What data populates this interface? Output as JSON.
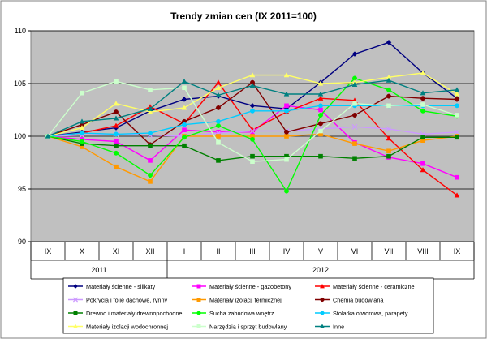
{
  "chart_data": {
    "type": "line",
    "title": "Trendy zmian cen (IX 2011=100)",
    "x": [
      "IX",
      "X",
      "XI",
      "XII",
      "I",
      "II",
      "III",
      "IV",
      "V",
      "VI",
      "VII",
      "VIII",
      "IX"
    ],
    "year_groups": [
      {
        "label": "2011",
        "from": 0,
        "to": 3
      },
      {
        "label": "2012",
        "from": 4,
        "to": 12
      }
    ],
    "ylim": [
      90,
      110
    ],
    "yticks": [
      90,
      95,
      100,
      105,
      110
    ],
    "grid": true,
    "legend_position": "bottom",
    "plot_background": "#c0c0c0",
    "series": [
      {
        "name": "Materiały ścienne - silikaty",
        "color": "#000080",
        "marker": "diamond",
        "values": [
          100,
          100.4,
          100.8,
          102.4,
          103.5,
          103.8,
          102.9,
          102.6,
          105.1,
          107.8,
          108.9,
          106.0,
          103.6
        ]
      },
      {
        "name": "Materiały ścienne - gazobetony",
        "color": "#ff00ff",
        "marker": "square",
        "values": [
          100,
          99.7,
          99.5,
          97.7,
          100.6,
          100.4,
          100.4,
          102.9,
          102.5,
          99.4,
          98.0,
          97.4,
          96.1
        ]
      },
      {
        "name": "Materiały ścienne - ceramiczne",
        "color": "#ff0000",
        "marker": "triangle",
        "values": [
          100,
          100.3,
          101.0,
          102.8,
          101.2,
          105.1,
          100.6,
          102.3,
          103.6,
          103.4,
          99.8,
          96.8,
          94.4
        ]
      },
      {
        "name": "Pokrycia i folie dachowe, rynny",
        "color": "#cc99ff",
        "marker": "x",
        "values": [
          100,
          100.1,
          100.2,
          100.1,
          100.0,
          100.3,
          100.5,
          100.5,
          100.7,
          100.9,
          100.7,
          100.2,
          100.4
        ]
      },
      {
        "name": "Materiały izolacji termicznej",
        "color": "#ff9900",
        "marker": "square",
        "values": [
          100,
          99.0,
          97.1,
          95.7,
          100.0,
          100.0,
          100.0,
          100.0,
          100.2,
          99.3,
          98.6,
          99.6,
          100.0
        ]
      },
      {
        "name": "Chemia budowlana",
        "color": "#800000",
        "marker": "circle",
        "values": [
          100,
          101.1,
          102.3,
          99.2,
          101.4,
          102.7,
          105.1,
          100.4,
          101.2,
          102.0,
          103.8,
          103.6,
          103.5
        ]
      },
      {
        "name": "Drewno i materiały drewnopochodne",
        "color": "#008000",
        "marker": "square",
        "values": [
          100,
          99.3,
          99.1,
          99.1,
          99.1,
          97.7,
          98.1,
          98.1,
          98.1,
          97.9,
          98.1,
          99.9,
          99.9
        ]
      },
      {
        "name": "Sucha zabudowa wnętrz",
        "color": "#00ff00",
        "marker": "circle",
        "values": [
          100,
          99.5,
          98.4,
          96.3,
          99.9,
          101.0,
          99.7,
          94.8,
          102.0,
          105.5,
          104.4,
          102.4,
          101.9
        ]
      },
      {
        "name": "Stolarka otworowa, parapety",
        "color": "#00ccff",
        "marker": "circle",
        "values": [
          100,
          100.3,
          100.2,
          100.3,
          101.1,
          101.4,
          102.4,
          102.4,
          102.9,
          102.9,
          102.9,
          102.9,
          102.9
        ]
      },
      {
        "name": "Materiały izolacji wodochronnej",
        "color": "#ffff66",
        "marker": "triangle",
        "values": [
          100,
          100.8,
          103.1,
          102.3,
          102.7,
          104.6,
          105.8,
          105.8,
          105.0,
          105.1,
          105.6,
          106.0,
          104.0
        ]
      },
      {
        "name": "Narzędzia i sprzęt budowlany",
        "color": "#ccffcc",
        "marker": "square",
        "values": [
          100,
          104.1,
          105.2,
          104.4,
          104.6,
          99.4,
          97.6,
          97.8,
          100.5,
          103.1,
          102.9,
          103.0,
          102.0
        ]
      },
      {
        "name": "Inne",
        "color": "#008080",
        "marker": "triangle",
        "values": [
          100,
          101.4,
          101.7,
          102.6,
          105.2,
          103.9,
          104.8,
          104.0,
          104.0,
          104.9,
          105.3,
          104.1,
          104.4
        ]
      }
    ]
  }
}
